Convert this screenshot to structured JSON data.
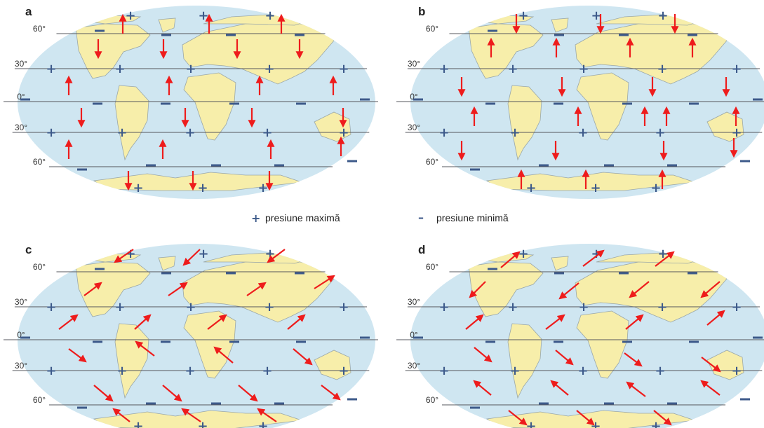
{
  "colors": {
    "ocean": "#cfe6f1",
    "land": "#f7eeaa",
    "coast": "#9aa7a8",
    "latitude_line": "#56575c",
    "pressure_symbol": "#3d5a8a",
    "arrow": "#ee1c1c"
  },
  "panels": [
    {
      "id": "a",
      "letter": "a"
    },
    {
      "id": "b",
      "letter": "b"
    },
    {
      "id": "c",
      "letter": "c"
    },
    {
      "id": "d",
      "letter": "d"
    }
  ],
  "latitude_labels": [
    "60°",
    "30°",
    "0°",
    "30°",
    "60°"
  ],
  "legend": {
    "plus_symbol": "+",
    "plus_label": "presiune maximă",
    "minus_symbol": "–",
    "minus_label": "presiune minimă"
  }
}
